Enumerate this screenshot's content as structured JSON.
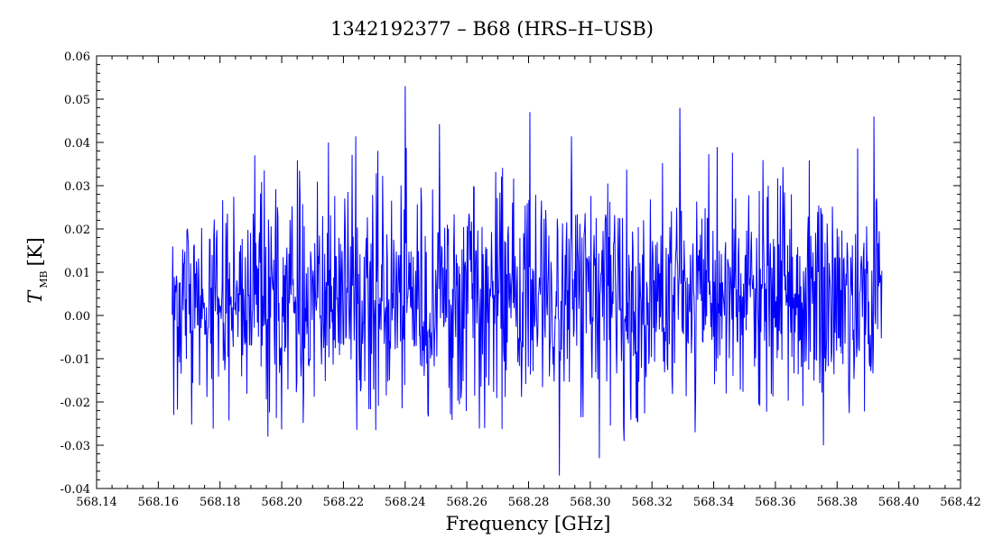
{
  "chart_data": {
    "type": "line",
    "title": "1342192377 – B68 (HRS–H–USB)",
    "xlabel": "Frequency [GHz]",
    "ylabel_main": "T",
    "ylabel_sub": "MB",
    "ylabel_unit": "[K]",
    "xlim": [
      568.14,
      568.42
    ],
    "ylim": [
      -0.04,
      0.06
    ],
    "x_ticks": [
      568.14,
      568.16,
      568.18,
      568.2,
      568.22,
      568.24,
      568.26,
      568.28,
      568.3,
      568.32,
      568.34,
      568.36,
      568.38,
      568.4,
      568.42
    ],
    "x_tick_labels": [
      "568.14",
      "568.16",
      "568.18",
      "568.20",
      "568.22",
      "568.24",
      "568.26",
      "568.28",
      "568.30",
      "568.32",
      "568.34",
      "568.36",
      "568.38",
      "568.40",
      "568.42"
    ],
    "y_ticks": [
      -0.04,
      -0.03,
      -0.02,
      -0.01,
      0.0,
      0.01,
      0.02,
      0.03,
      0.04,
      0.05,
      0.06
    ],
    "y_tick_labels": [
      "-0.04",
      "-0.03",
      "-0.02",
      "-0.01",
      "0.00",
      "0.01",
      "0.02",
      "0.03",
      "0.04",
      "0.05",
      "0.06"
    ],
    "grid": false,
    "series": [
      {
        "color": "#0000ff",
        "x_start": 568.1645,
        "x_end": 568.3945,
        "points": 1350,
        "noise_rms": 0.0125,
        "noise_offset": 0.004,
        "spikes": [
          {
            "x": 568.24,
            "y": 0.053
          },
          {
            "x": 568.329,
            "y": 0.048
          },
          {
            "x": 568.2805,
            "y": 0.047
          },
          {
            "x": 568.392,
            "y": 0.046
          },
          {
            "x": 568.29,
            "y": -0.037
          },
          {
            "x": 568.303,
            "y": -0.033
          },
          {
            "x": 568.3755,
            "y": -0.03
          },
          {
            "x": 568.1955,
            "y": -0.028
          },
          {
            "x": 568.311,
            "y": -0.029
          },
          {
            "x": 568.334,
            "y": -0.027
          },
          {
            "x": 568.165,
            "y": -0.023
          }
        ]
      }
    ]
  }
}
